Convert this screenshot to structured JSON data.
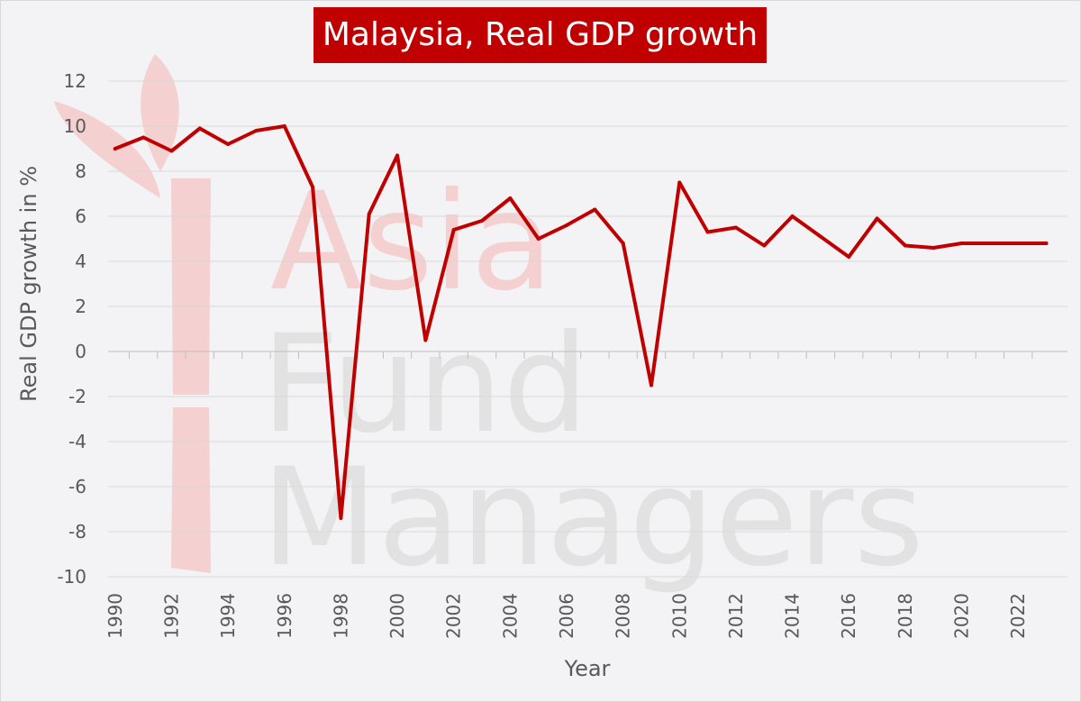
{
  "chart_data": {
    "type": "line",
    "title": "Malaysia, Real GDP growth",
    "xlabel": "Year",
    "ylabel": "Real GDP growth in %",
    "x": [
      1990,
      1991,
      1992,
      1993,
      1994,
      1995,
      1996,
      1997,
      1998,
      1999,
      2000,
      2001,
      2002,
      2003,
      2004,
      2005,
      2006,
      2007,
      2008,
      2009,
      2010,
      2011,
      2012,
      2013,
      2014,
      2015,
      2016,
      2017,
      2018,
      2019,
      2020,
      2021,
      2022,
      2023
    ],
    "series": [
      {
        "values": [
          9.0,
          9.5,
          8.9,
          9.9,
          9.2,
          9.8,
          10.0,
          7.3,
          -7.4,
          6.1,
          8.7,
          0.5,
          5.4,
          5.8,
          6.8,
          5.0,
          5.6,
          6.3,
          4.8,
          -1.5,
          7.5,
          5.3,
          5.5,
          4.7,
          6.0,
          5.1,
          4.2,
          5.9,
          4.7,
          4.6,
          4.8,
          4.8,
          4.8,
          4.8
        ],
        "color": "#c00000"
      }
    ],
    "x_tick_labels": [
      "1990",
      "1992",
      "1994",
      "1996",
      "1998",
      "2000",
      "2002",
      "2004",
      "2006",
      "2008",
      "2010",
      "2012",
      "2014",
      "2016",
      "2018",
      "2020",
      "2022"
    ],
    "y_tick_labels": [
      "-10",
      "-8",
      "-6",
      "-4",
      "-2",
      "0",
      "2",
      "4",
      "6",
      "8",
      "10",
      "12"
    ],
    "ylim": [
      -10,
      12
    ],
    "xlim": [
      1989.75,
      2023.75
    ],
    "grid": "horizontal",
    "legend": "none"
  },
  "watermark": {
    "lines": [
      "Asia",
      "Fund",
      "Managers"
    ],
    "logo_icon": "bamboo-leaf-logo-icon"
  },
  "colors": {
    "accent": "#c00000",
    "background": "#f3f2f4",
    "gridline": "#d9d9d9",
    "text": "#595959"
  }
}
